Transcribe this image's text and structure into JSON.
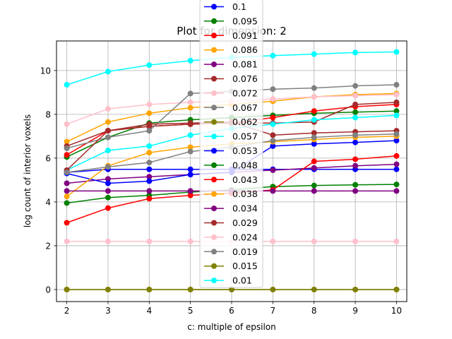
{
  "chart_data": {
    "type": "line",
    "title": "Plot for dimension: 2",
    "xlabel": "c: multiple of epsilon",
    "ylabel": "log count of interior voxels",
    "x": [
      2,
      3,
      4,
      5,
      6,
      7,
      8,
      9,
      10
    ],
    "xlim": [
      1.75,
      10.25
    ],
    "ylim": [
      -0.55,
      11.35
    ],
    "xticks": [
      "2",
      "3",
      "4",
      "5",
      "6",
      "7",
      "8",
      "9",
      "10"
    ],
    "yticks": [
      "0",
      "2",
      "4",
      "6",
      "8",
      "10"
    ],
    "grid": true,
    "legend_position": "center",
    "series": [
      {
        "name": "0.1",
        "color": "#0000ff",
        "values": [
          5.35,
          5.49,
          5.49,
          5.49,
          5.49,
          5.49,
          5.49,
          5.49,
          5.49
        ]
      },
      {
        "name": "0.095",
        "color": "#008000",
        "values": [
          6.05,
          6.95,
          7.6,
          7.75,
          7.85,
          7.95,
          8.05,
          8.1,
          8.15
        ]
      },
      {
        "name": "0.091",
        "color": "#ff0000",
        "values": [
          6.15,
          7.25,
          7.45,
          7.55,
          7.6,
          7.85,
          8.15,
          8.35,
          8.45
        ]
      },
      {
        "name": "0.086",
        "color": "#ffa500",
        "values": [
          6.75,
          7.65,
          8.05,
          8.3,
          8.45,
          8.6,
          8.8,
          8.9,
          8.95
        ]
      },
      {
        "name": "0.081",
        "color": "#800080",
        "values": [
          4.85,
          5.05,
          5.15,
          5.25,
          5.35,
          5.45,
          5.55,
          5.65,
          5.72
        ]
      },
      {
        "name": "0.076",
        "color": "#a52a2a",
        "values": [
          6.55,
          7.25,
          7.45,
          7.55,
          7.6,
          7.6,
          7.65,
          8.45,
          8.55
        ]
      },
      {
        "name": "0.072",
        "color": "#ffc0cb",
        "values": [
          7.55,
          8.25,
          8.45,
          8.55,
          8.6,
          8.7,
          8.8,
          8.85,
          8.9
        ]
      },
      {
        "name": "0.067",
        "color": "#808080",
        "values": [
          6.45,
          6.95,
          7.25,
          8.95,
          9.05,
          9.15,
          9.2,
          9.3,
          9.35
        ]
      },
      {
        "name": "0.062",
        "color": "#808000",
        "values": [
          0,
          0,
          0,
          0,
          0,
          0,
          0,
          0,
          0
        ]
      },
      {
        "name": "0.057",
        "color": "#00ffff",
        "values": [
          5.45,
          6.35,
          6.55,
          7.05,
          7.35,
          7.55,
          7.75,
          7.85,
          7.95
        ]
      },
      {
        "name": "0.053",
        "color": "#0000ff",
        "values": [
          5.3,
          4.85,
          4.95,
          5.25,
          5.35,
          6.55,
          6.65,
          6.72,
          6.8
        ]
      },
      {
        "name": "0.048",
        "color": "#008000",
        "values": [
          3.95,
          4.2,
          4.3,
          4.45,
          4.55,
          4.7,
          4.75,
          4.78,
          4.8
        ]
      },
      {
        "name": "0.043",
        "color": "#ff0000",
        "values": [
          3.05,
          3.72,
          4.15,
          4.3,
          4.4,
          4.55,
          5.85,
          5.95,
          6.1
        ]
      },
      {
        "name": "0.038",
        "color": "#ffa500",
        "values": [
          4.25,
          5.65,
          6.25,
          6.5,
          6.65,
          6.75,
          6.85,
          6.95,
          7.0
        ]
      },
      {
        "name": "0.034",
        "color": "#800080",
        "values": [
          4.5,
          4.5,
          4.5,
          4.5,
          4.5,
          4.5,
          4.5,
          4.5,
          4.5
        ]
      },
      {
        "name": "0.029",
        "color": "#a52a2a",
        "values": [
          5.45,
          7.25,
          7.55,
          7.6,
          7.65,
          7.05,
          7.15,
          7.2,
          7.25
        ]
      },
      {
        "name": "0.024",
        "color": "#ffc0cb",
        "values": [
          2.2,
          2.2,
          2.2,
          2.2,
          2.2,
          2.2,
          2.2,
          2.2,
          2.2
        ]
      },
      {
        "name": "0.019",
        "color": "#808080",
        "values": [
          5.35,
          5.6,
          5.8,
          6.3,
          6.5,
          6.8,
          6.95,
          7.05,
          7.1
        ]
      },
      {
        "name": "0.015",
        "color": "#808000",
        "values": [
          0,
          0,
          0,
          0,
          0,
          0,
          0,
          0,
          0
        ]
      },
      {
        "name": "0.01",
        "color": "#00ffff",
        "values": [
          9.35,
          9.95,
          10.25,
          10.45,
          10.6,
          10.68,
          10.75,
          10.82,
          10.85
        ]
      }
    ]
  }
}
